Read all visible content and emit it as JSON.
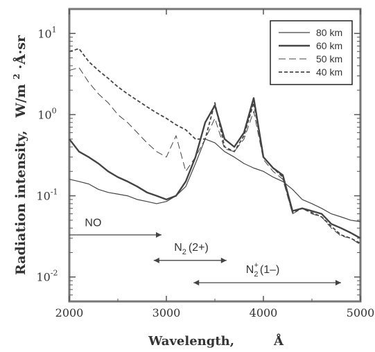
{
  "chart_data": {
    "type": "line",
    "xlabel": "Wavelength,",
    "xunit": "Å",
    "ylabel": "Radiation intensity,",
    "yunit_parts": [
      "W/m",
      "2",
      "·Å·sr"
    ],
    "xlim": [
      2000,
      5000
    ],
    "ylim": [
      0.005,
      20
    ],
    "yscale": "log",
    "grid": false,
    "legend_position": "top-right",
    "xticks": [
      2000,
      3000,
      4000,
      5000
    ],
    "yticks": [
      {
        "value": 10,
        "base": "10",
        "exp": "1"
      },
      {
        "value": 1,
        "base": "10",
        "exp": "0"
      },
      {
        "value": 0.1,
        "base": "10",
        "exp": "-1"
      },
      {
        "value": 0.01,
        "base": "10",
        "exp": "-2"
      }
    ],
    "x": [
      2000,
      2100,
      2200,
      2300,
      2400,
      2500,
      2600,
      2700,
      2800,
      2900,
      3000,
      3100,
      3200,
      3300,
      3400,
      3500,
      3600,
      3700,
      3800,
      3900,
      4000,
      4100,
      4200,
      4300,
      4400,
      4500,
      4600,
      4700,
      4800,
      4900,
      5000
    ],
    "series": [
      {
        "name": "80 km",
        "dash": "",
        "width": 1.2,
        "values": [
          0.16,
          0.15,
          0.14,
          0.12,
          0.11,
          0.105,
          0.1,
          0.09,
          0.085,
          0.08,
          0.085,
          0.1,
          0.13,
          0.25,
          0.5,
          0.45,
          0.35,
          0.3,
          0.25,
          0.22,
          0.2,
          0.17,
          0.15,
          0.12,
          0.09,
          0.08,
          0.07,
          0.06,
          0.055,
          0.05,
          0.048
        ]
      },
      {
        "name": "60 km",
        "dash": "",
        "width": 2.4,
        "values": [
          0.5,
          0.35,
          0.3,
          0.25,
          0.2,
          0.17,
          0.15,
          0.13,
          0.11,
          0.1,
          0.09,
          0.1,
          0.15,
          0.3,
          0.8,
          1.3,
          0.5,
          0.4,
          0.6,
          1.6,
          0.3,
          0.22,
          0.18,
          0.065,
          0.07,
          0.065,
          0.06,
          0.045,
          0.04,
          0.035,
          0.03
        ]
      },
      {
        "name": "50 km",
        "dash": "10 5",
        "width": 1.0,
        "values": [
          3.5,
          3.8,
          2.5,
          1.8,
          1.4,
          1.0,
          0.8,
          0.6,
          0.45,
          0.35,
          0.3,
          0.55,
          0.2,
          0.3,
          0.5,
          0.9,
          0.38,
          0.35,
          0.5,
          1.1,
          0.28,
          0.2,
          0.16,
          0.06,
          0.07,
          0.06,
          0.055,
          0.04,
          0.032,
          0.03,
          0.025
        ]
      },
      {
        "name": "40 km",
        "dash": "5 3",
        "width": 1.8,
        "values": [
          6.0,
          6.5,
          4.5,
          3.5,
          2.8,
          2.2,
          1.8,
          1.5,
          1.25,
          1.05,
          0.9,
          0.75,
          0.65,
          0.5,
          0.5,
          1.4,
          0.4,
          0.35,
          0.55,
          1.4,
          0.3,
          0.22,
          0.17,
          0.062,
          0.07,
          0.062,
          0.055,
          0.042,
          0.033,
          0.03,
          0.026
        ]
      }
    ],
    "annotations": [
      {
        "label": "NO",
        "from": 2000,
        "to": 2950,
        "y": 0.033,
        "arrows": "end",
        "label_x": 2160,
        "label_y": 0.042
      },
      {
        "label_base": "N",
        "label_sub": "2",
        "label_rest": "(2+)",
        "from": 2870,
        "to": 3620,
        "y": 0.016,
        "arrows": "both",
        "label_x": 3080,
        "label_y": 0.021
      },
      {
        "label_base": "N",
        "label_sub": "2",
        "label_sup": "+",
        "label_rest": "(1–)",
        "from": 3280,
        "to": 4800,
        "y": 0.0085,
        "arrows": "both",
        "label_x": 3820,
        "label_y": 0.0112
      }
    ]
  }
}
